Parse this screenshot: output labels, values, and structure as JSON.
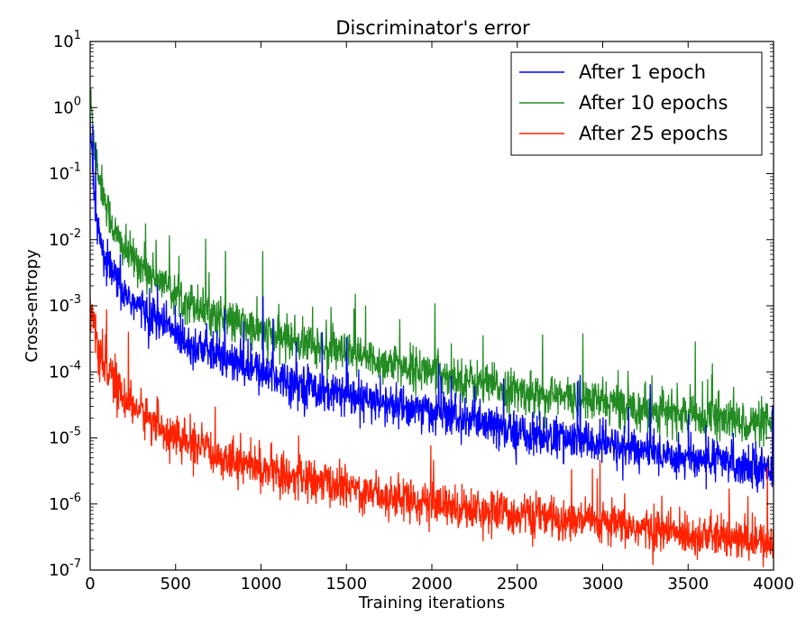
{
  "chart_data": {
    "type": "line",
    "title": "Discriminator's error",
    "xlabel": "Training iterations",
    "ylabel": "Cross-entropy",
    "xlim": [
      0,
      4000
    ],
    "ylim": [
      1e-07,
      10
    ],
    "yscale": "log",
    "grid": false,
    "legend_position": "top-right",
    "x_ticks": [
      0,
      500,
      1000,
      1500,
      2000,
      2500,
      3000,
      3500,
      4000
    ],
    "x_tick_labels": [
      "0",
      "500",
      "1000",
      "1500",
      "2000",
      "2500",
      "3000",
      "3500",
      "4000"
    ],
    "y_ticks": [
      1e-07,
      1e-06,
      1e-05,
      0.0001,
      0.001,
      0.01,
      0.1,
      1,
      10
    ],
    "y_tick_labels": [
      {
        "base": "10",
        "exp": "-7"
      },
      {
        "base": "10",
        "exp": "-6"
      },
      {
        "base": "10",
        "exp": "-5"
      },
      {
        "base": "10",
        "exp": "-4"
      },
      {
        "base": "10",
        "exp": "-3"
      },
      {
        "base": "10",
        "exp": "-2"
      },
      {
        "base": "10",
        "exp": "-1"
      },
      {
        "base": "10",
        "exp": "0"
      },
      {
        "base": "10",
        "exp": "1"
      }
    ],
    "series": [
      {
        "name": "After 1 epoch",
        "color": "#0000ff",
        "x": [
          0,
          25,
          50,
          100,
          150,
          200,
          300,
          400,
          500,
          600,
          700,
          800,
          1000,
          1200,
          1500,
          2000,
          2500,
          3000,
          3500,
          4000
        ],
        "y": [
          0.5,
          0.05,
          0.01,
          0.004,
          0.0025,
          0.0015,
          0.0009,
          0.0006,
          0.0004,
          0.00025,
          0.0002,
          0.00015,
          0.0001,
          7e-05,
          4e-05,
          2.5e-05,
          1.2e-05,
          8e-06,
          5e-06,
          3.5e-06
        ]
      },
      {
        "name": "After 10 epochs",
        "color": "#228b22",
        "x": [
          0,
          25,
          50,
          100,
          150,
          200,
          300,
          400,
          500,
          600,
          700,
          800,
          1000,
          1200,
          1500,
          2000,
          2500,
          3000,
          3500,
          4000
        ],
        "y": [
          1.5,
          0.3,
          0.1,
          0.03,
          0.012,
          0.007,
          0.004,
          0.0025,
          0.0015,
          0.0011,
          0.0008,
          0.0006,
          0.0004,
          0.0003,
          0.00018,
          0.0001,
          5e-05,
          3.5e-05,
          2.2e-05,
          1.5e-05
        ]
      },
      {
        "name": "After 25 epochs",
        "color": "#ff2200",
        "x": [
          0,
          25,
          50,
          100,
          150,
          200,
          300,
          400,
          500,
          600,
          700,
          800,
          1000,
          1200,
          1500,
          2000,
          2500,
          3000,
          3500,
          4000
        ],
        "y": [
          0.001,
          0.0004,
          0.0002,
          0.0001,
          6e-05,
          4e-05,
          2.5e-05,
          1.5e-05,
          1e-05,
          8e-06,
          6e-06,
          5e-06,
          3.5e-06,
          2.5e-06,
          1.8e-06,
          1e-06,
          7e-07,
          5e-07,
          3.5e-07,
          2.5e-07
        ]
      }
    ]
  }
}
